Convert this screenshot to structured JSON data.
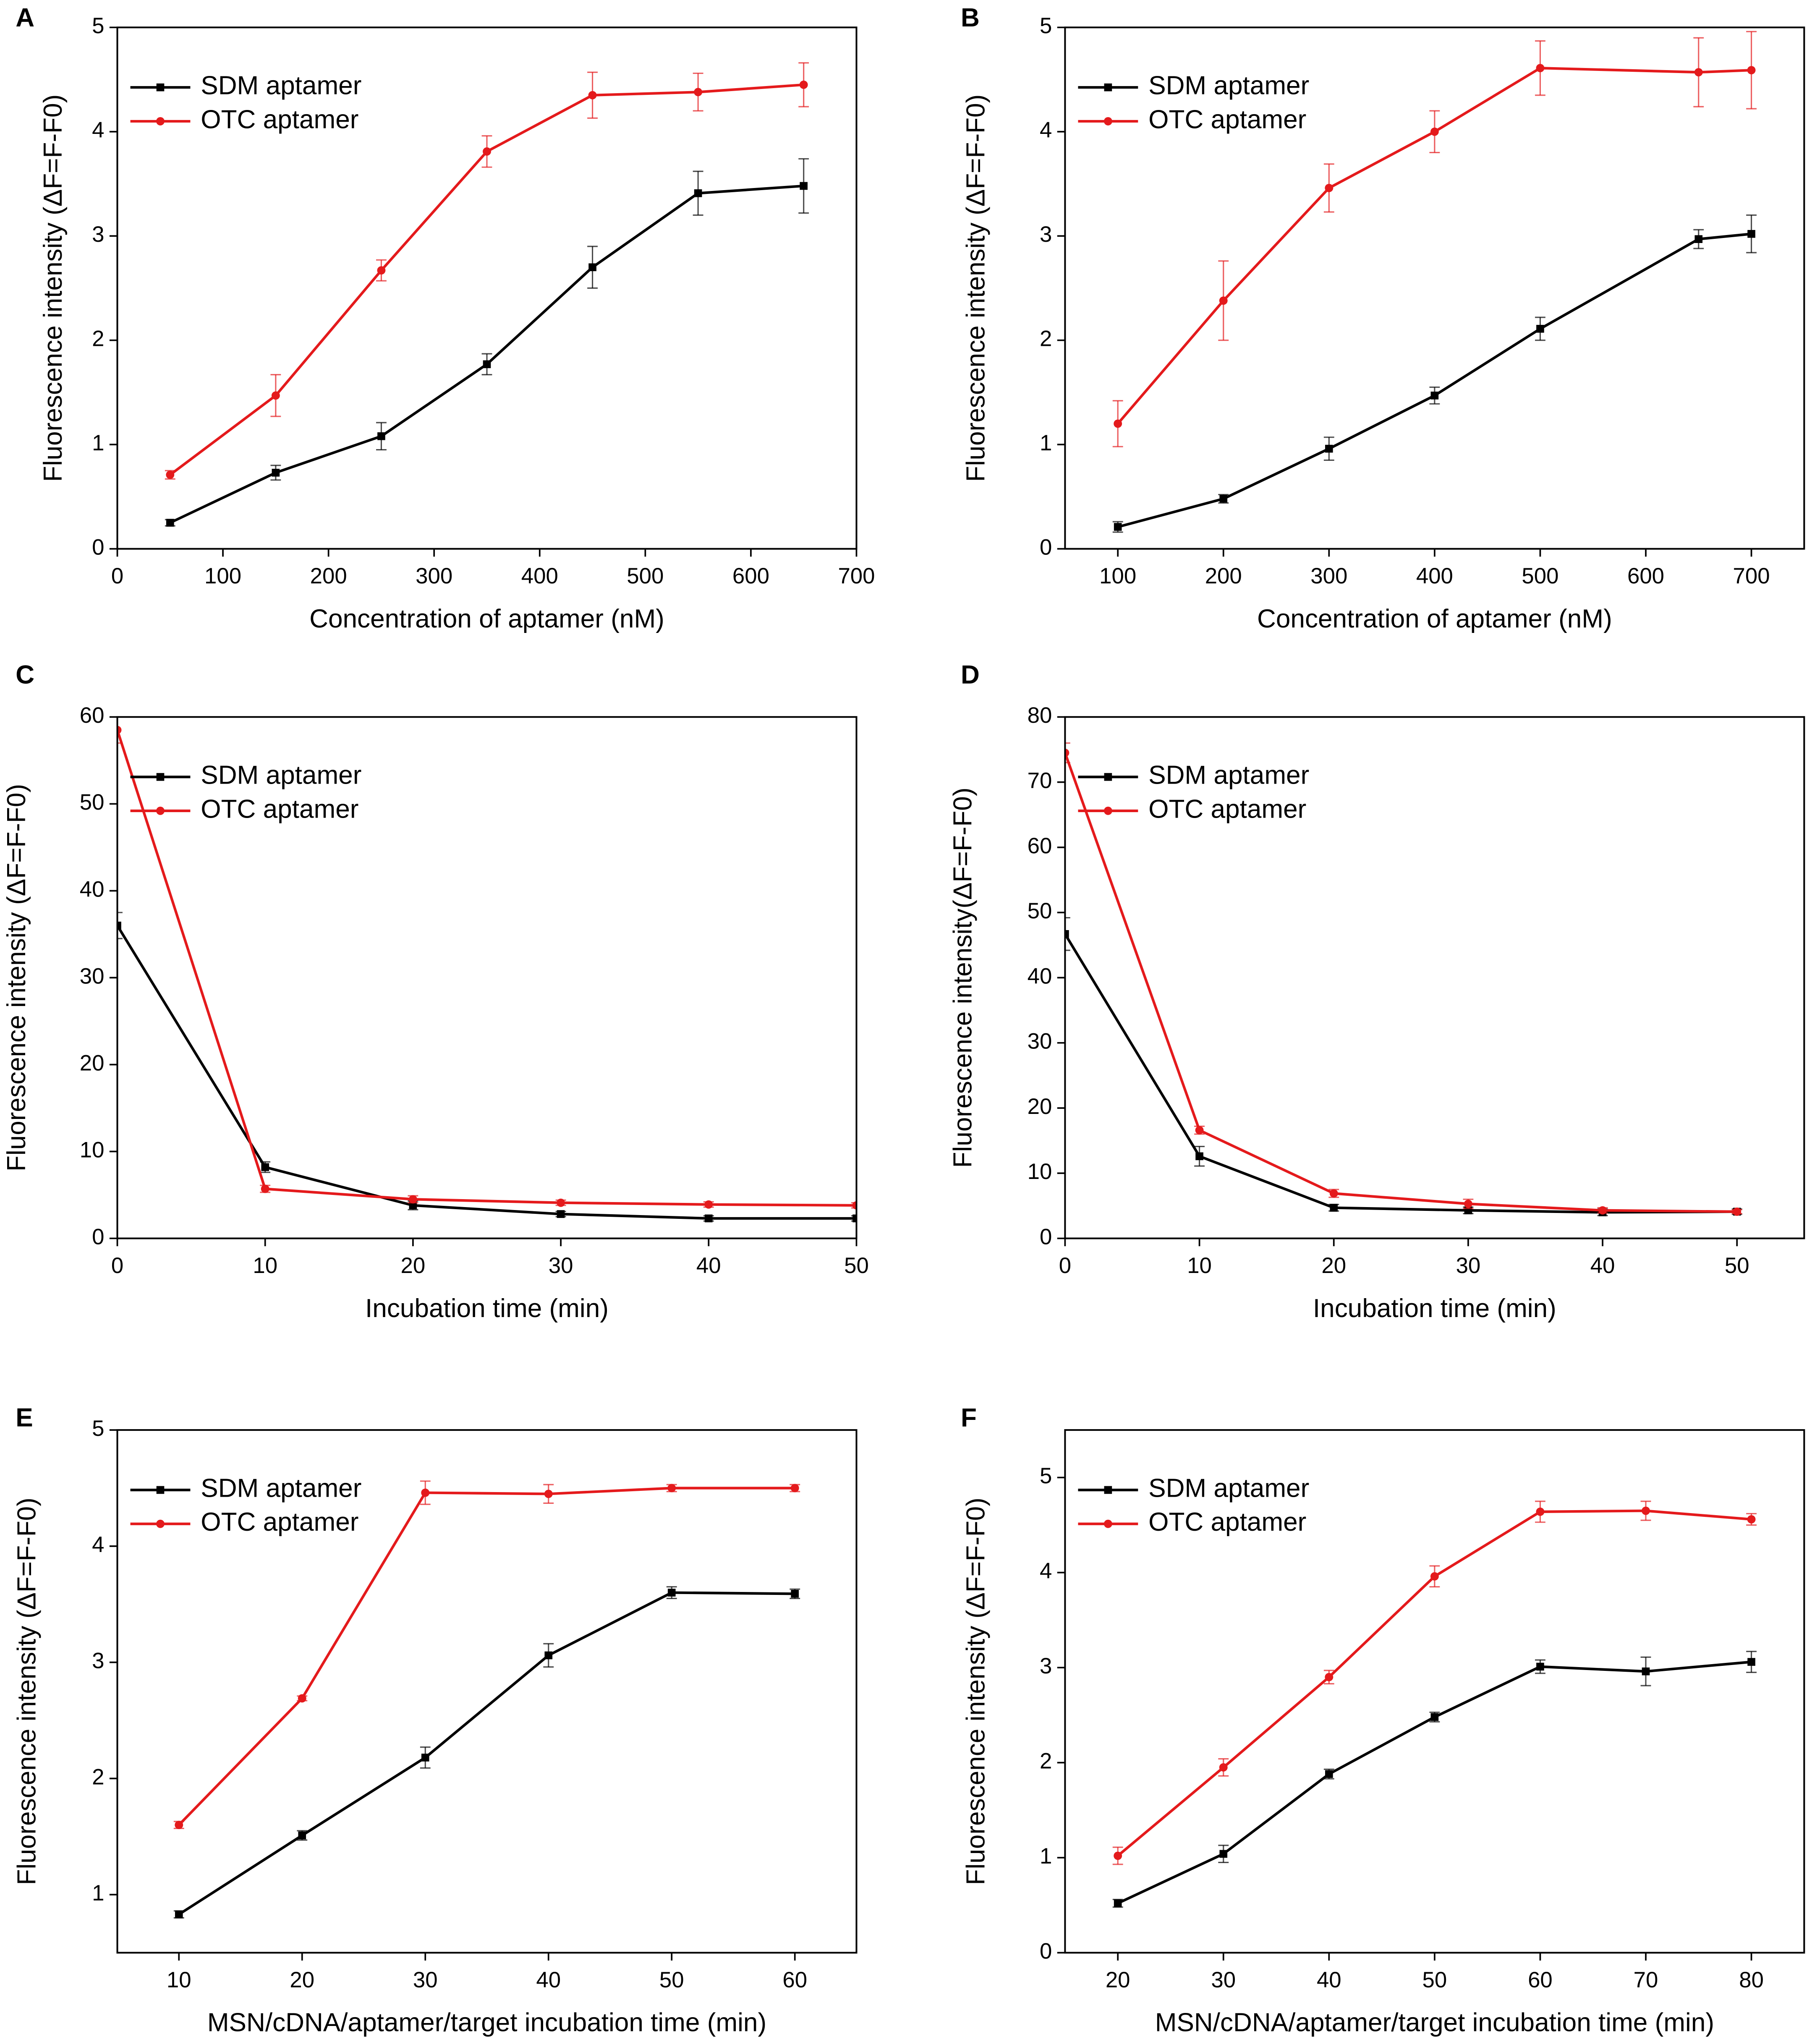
{
  "chart_data": [
    {
      "label": "A",
      "type": "line",
      "xlabel": "Concentration of aptamer (nM)",
      "ylabel": "Fluorescence intensity (ΔF=F-F0)",
      "x": [
        50,
        150,
        250,
        350,
        450,
        550,
        650
      ],
      "xlim": [
        0,
        700
      ],
      "xticks": [
        0,
        100,
        200,
        300,
        400,
        500,
        600,
        700
      ],
      "ylim": [
        0,
        5
      ],
      "yticks": [
        0,
        1,
        2,
        3,
        4,
        5
      ],
      "legend": "upper left",
      "series": [
        {
          "name": "SDM aptamer",
          "color": "#000000",
          "marker": "square",
          "values": [
            0.25,
            0.73,
            1.08,
            1.77,
            2.7,
            3.41,
            3.48
          ],
          "errors": [
            0.03,
            0.07,
            0.13,
            0.1,
            0.2,
            0.21,
            0.26
          ]
        },
        {
          "name": "OTC aptamer",
          "color": "#e41a1c",
          "marker": "circle",
          "values": [
            0.71,
            1.47,
            2.67,
            3.81,
            4.35,
            4.38,
            4.45
          ],
          "errors": [
            0.04,
            0.2,
            0.1,
            0.15,
            0.22,
            0.18,
            0.21
          ]
        }
      ]
    },
    {
      "label": "B",
      "type": "line",
      "xlabel": "Concentration of aptamer (nM)",
      "ylabel": "Fluorescence intensity (ΔF=F-F0)",
      "x": [
        100,
        200,
        300,
        400,
        500,
        650,
        700
      ],
      "xlim": [
        50,
        750
      ],
      "xticks": [
        100,
        200,
        300,
        400,
        500,
        600,
        700
      ],
      "ylim": [
        0,
        5
      ],
      "yticks": [
        0,
        1,
        2,
        3,
        4,
        5
      ],
      "legend": "upper left",
      "series": [
        {
          "name": "SDM aptamer",
          "color": "#000000",
          "marker": "square",
          "values": [
            0.21,
            0.48,
            0.96,
            1.47,
            2.11,
            2.97,
            3.02
          ],
          "errors": [
            0.05,
            0.04,
            0.11,
            0.08,
            0.11,
            0.09,
            0.18
          ]
        },
        {
          "name": "OTC aptamer",
          "color": "#e41a1c",
          "marker": "circle",
          "values": [
            1.2,
            2.38,
            3.46,
            4.0,
            4.61,
            4.57,
            4.59
          ],
          "errors": [
            0.22,
            0.38,
            0.23,
            0.2,
            0.26,
            0.33,
            0.37
          ]
        }
      ]
    },
    {
      "label": "C",
      "type": "line",
      "xlabel": "Incubation time (min)",
      "ylabel": "Fluorescence intensity (ΔF=F-F0)",
      "x": [
        0,
        10,
        20,
        30,
        40,
        50
      ],
      "xlim": [
        0,
        50
      ],
      "xticks": [
        0,
        10,
        20,
        30,
        40,
        50
      ],
      "ylim": [
        0,
        60
      ],
      "yticks": [
        0,
        10,
        20,
        30,
        40,
        50,
        60
      ],
      "legend": "upper left",
      "series": [
        {
          "name": "SDM aptamer",
          "color": "#000000",
          "marker": "square",
          "values": [
            36,
            8.2,
            3.8,
            2.8,
            2.3,
            2.3
          ],
          "errors": [
            1.5,
            0.6,
            0.5,
            0.3,
            0.3,
            0.3
          ]
        },
        {
          "name": "OTC aptamer",
          "color": "#e41a1c",
          "marker": "circle",
          "values": [
            58.5,
            5.7,
            4.5,
            4.1,
            3.9,
            3.8
          ],
          "errors": [
            1.5,
            0.4,
            0.4,
            0.3,
            0.3,
            0.3
          ]
        }
      ]
    },
    {
      "label": "D",
      "type": "line",
      "xlabel": "Incubation time (min)",
      "ylabel": "Fluorescence intensity(ΔF=F-F0)",
      "x": [
        0,
        10,
        20,
        30,
        40,
        50
      ],
      "xlim": [
        0,
        55
      ],
      "xticks": [
        0,
        10,
        20,
        30,
        40,
        50
      ],
      "ylim": [
        0,
        80
      ],
      "yticks": [
        0,
        10,
        20,
        30,
        40,
        50,
        60,
        70,
        80
      ],
      "legend": "upper left",
      "series": [
        {
          "name": "SDM aptamer",
          "color": "#000000",
          "marker": "square",
          "values": [
            46.7,
            12.6,
            4.7,
            4.3,
            4.0,
            4.1
          ],
          "errors": [
            2.5,
            1.5,
            0.5,
            0.5,
            0.5,
            0.4
          ]
        },
        {
          "name": "OTC aptamer",
          "color": "#e41a1c",
          "marker": "circle",
          "values": [
            74.5,
            16.6,
            6.9,
            5.3,
            4.3,
            4.1
          ],
          "errors": [
            1.5,
            0.6,
            0.6,
            0.7,
            0.4,
            0.3
          ]
        }
      ]
    },
    {
      "label": "E",
      "type": "line",
      "xlabel": "MSN/cDNA/aptamer/target incubation time (min)",
      "ylabel": "Fluorescence intensity (ΔF=F-F0)",
      "x": [
        10,
        20,
        30,
        40,
        50,
        60
      ],
      "xlim": [
        5,
        65
      ],
      "xticks": [
        10,
        20,
        30,
        40,
        50,
        60
      ],
      "ylim": [
        0.5,
        5
      ],
      "yticks": [
        1,
        2,
        3,
        4,
        5
      ],
      "legend": "upper left",
      "series": [
        {
          "name": "SDM aptamer",
          "color": "#000000",
          "marker": "square",
          "values": [
            0.83,
            1.51,
            2.18,
            3.06,
            3.6,
            3.59
          ],
          "errors": [
            0.03,
            0.04,
            0.09,
            0.1,
            0.05,
            0.04
          ]
        },
        {
          "name": "OTC aptamer",
          "color": "#e41a1c",
          "marker": "circle",
          "values": [
            1.6,
            2.69,
            4.46,
            4.45,
            4.5,
            4.5
          ],
          "errors": [
            0.03,
            0.02,
            0.1,
            0.08,
            0.03,
            0.03
          ]
        }
      ]
    },
    {
      "label": "F",
      "type": "line",
      "xlabel": "MSN/cDNA/aptamer/target incubation time (min)",
      "ylabel": "Fluorescence intensity (ΔF=F-F0)",
      "x": [
        20,
        30,
        40,
        50,
        60,
        70,
        80
      ],
      "xlim": [
        15,
        85
      ],
      "xticks": [
        20,
        30,
        40,
        50,
        60,
        70,
        80
      ],
      "ylim": [
        0,
        5.5
      ],
      "yticks": [
        0,
        1,
        2,
        3,
        4,
        5
      ],
      "legend": "upper left",
      "series": [
        {
          "name": "SDM aptamer",
          "color": "#000000",
          "marker": "square",
          "values": [
            0.52,
            1.04,
            1.88,
            2.48,
            3.01,
            2.96,
            3.06
          ],
          "errors": [
            0.04,
            0.09,
            0.05,
            0.05,
            0.07,
            0.15,
            0.11
          ]
        },
        {
          "name": "OTC aptamer",
          "color": "#e41a1c",
          "marker": "circle",
          "values": [
            1.02,
            1.95,
            2.9,
            3.96,
            4.64,
            4.65,
            4.56
          ],
          "errors": [
            0.09,
            0.09,
            0.07,
            0.11,
            0.11,
            0.1,
            0.06
          ]
        }
      ]
    }
  ]
}
